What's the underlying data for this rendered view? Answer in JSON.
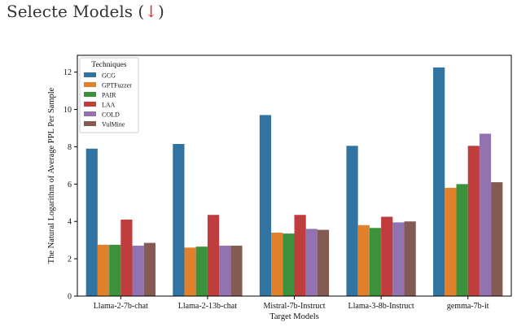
{
  "heading": {
    "text": "Selecte Models (",
    "arrow": "↓",
    "close": ")"
  },
  "colors": {
    "GCG": "#3274a1",
    "GPTFuzzer": "#e1812c",
    "PAIR": "#3a923a",
    "LAA": "#c03d3e",
    "COLD": "#9372b2",
    "VulMine": "#845b53"
  },
  "chart_data": {
    "type": "bar",
    "title": "",
    "xlabel": "Target Models",
    "ylabel": "The Natural Logarithm of Average PPL Per Sample",
    "ylim": [
      0,
      12.9
    ],
    "yticks": [
      0,
      2,
      4,
      6,
      8,
      10,
      12
    ],
    "grid": false,
    "legend": {
      "title": "Techniques",
      "placement": "top-left"
    },
    "categories": [
      "Llama-2-7b-chat",
      "Llama-2-13b-chat",
      "Mistral-7b-Instruct",
      "Llama-3-8b-Instruct",
      "gemma-7b-it"
    ],
    "series": [
      {
        "name": "GCG",
        "values": [
          7.9,
          8.15,
          9.7,
          8.05,
          12.25
        ]
      },
      {
        "name": "GPTFuzzer",
        "values": [
          2.75,
          2.6,
          3.4,
          3.8,
          5.8
        ]
      },
      {
        "name": "PAIR",
        "values": [
          2.75,
          2.65,
          3.35,
          3.65,
          6.0
        ]
      },
      {
        "name": "LAA",
        "values": [
          4.1,
          4.35,
          4.35,
          4.25,
          8.05
        ]
      },
      {
        "name": "COLD",
        "values": [
          2.7,
          2.7,
          3.6,
          3.95,
          8.7
        ]
      },
      {
        "name": "VulMine",
        "values": [
          2.85,
          2.7,
          3.55,
          4.0,
          6.1
        ]
      }
    ]
  }
}
